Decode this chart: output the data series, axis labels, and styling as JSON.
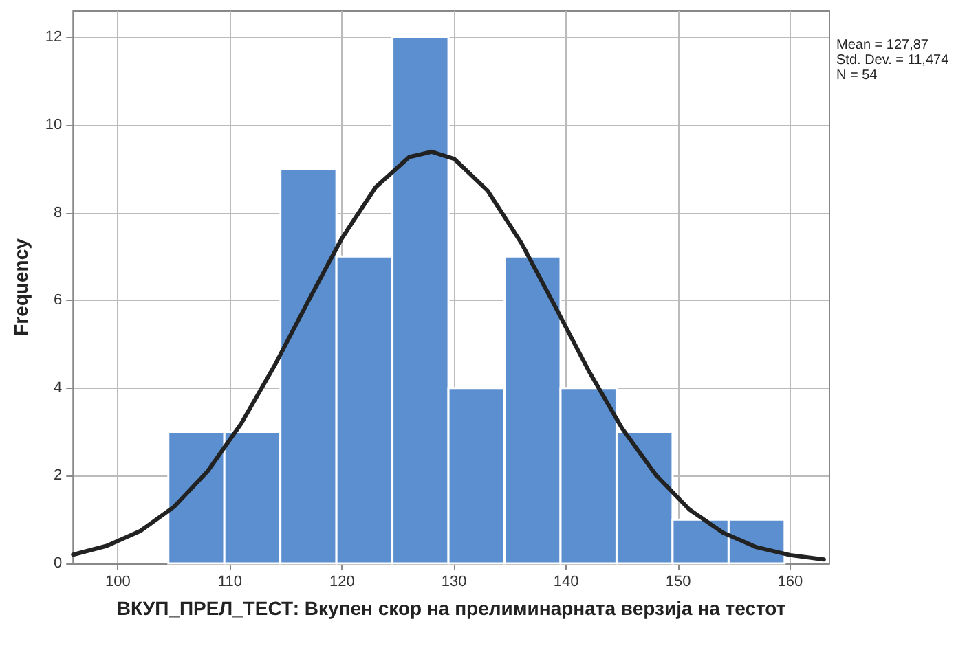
{
  "chart_data": {
    "type": "histogram",
    "xlabel": "ВКУП_ПРЕЛ_ТЕСТ: Вкупен скор на прелиминарната верзија на тестот",
    "ylabel": "Frequency",
    "bins": [
      104.5,
      109.5,
      114.5,
      119.5,
      124.5,
      129.5,
      134.5,
      139.5,
      144.5,
      149.5,
      154.5,
      159.5
    ],
    "values": [
      3,
      3,
      9,
      7,
      12,
      4,
      7,
      4,
      3,
      1,
      1
    ],
    "color": "#5b8fcf",
    "series": [
      {
        "type": "line",
        "color": "#222222",
        "x": [
          96,
          99,
          102,
          105,
          108,
          111,
          114,
          117,
          120,
          123,
          126,
          128,
          130,
          133,
          136,
          139,
          142,
          145,
          148,
          151,
          154,
          157,
          160,
          163
        ],
        "values": [
          0.2,
          0.4,
          0.74,
          1.29,
          2.1,
          3.19,
          4.52,
          5.99,
          7.42,
          8.58,
          9.27,
          9.39,
          9.23,
          8.5,
          7.31,
          5.87,
          4.4,
          3.08,
          2.02,
          1.23,
          0.7,
          0.37,
          0.19,
          0.09
        ]
      }
    ],
    "xlim": [
      96,
      163.5
    ],
    "xticks": [
      100,
      110,
      120,
      130,
      140,
      150,
      160
    ],
    "ylim": [
      0,
      12.6
    ],
    "yticks": [
      0,
      2,
      4,
      6,
      8,
      10,
      12
    ],
    "grid": true,
    "marker": "none",
    "line_style": "solid",
    "annotations": [
      "Mean = 127,87",
      "Std. Dev. = 11,474",
      "N = 54"
    ]
  }
}
